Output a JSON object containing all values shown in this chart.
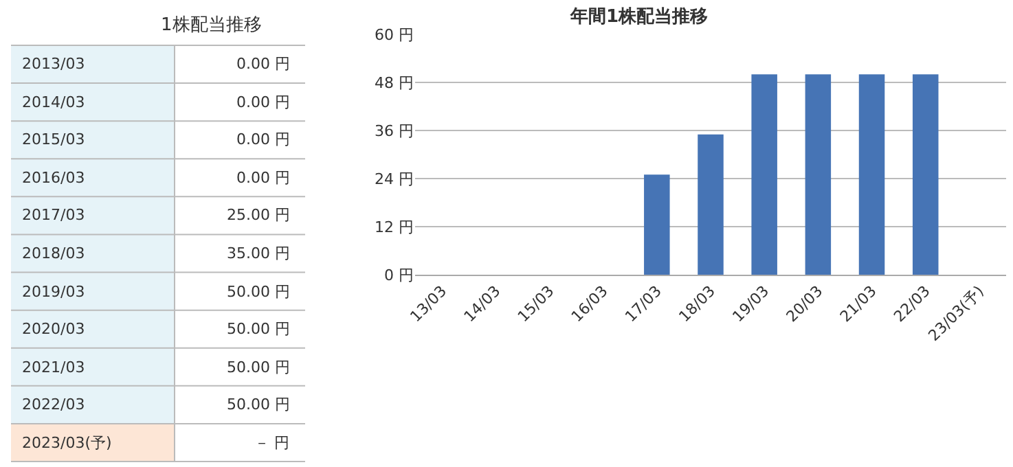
{
  "chart_data": [
    {
      "type": "other",
      "title": "1株配当推移",
      "categories": [
        "2013/03",
        "2014/03",
        "2015/03",
        "2016/03",
        "2017/03",
        "2018/03",
        "2019/03",
        "2020/03",
        "2021/03",
        "2022/03",
        "2023/03(予)"
      ],
      "value_labels": [
        "0.00 円",
        "0.00 円",
        "0.00 円",
        "0.00 円",
        "25.00 円",
        "35.00 円",
        "50.00 円",
        "50.00 円",
        "50.00 円",
        "50.00 円",
        "－ 円"
      ],
      "colors": [
        "#e6f3f8",
        "#e6f3f8",
        "#e6f3f8",
        "#e6f3f8",
        "#e6f3f8",
        "#e6f3f8",
        "#e6f3f8",
        "#e6f3f8",
        "#e6f3f8",
        "#e6f3f8",
        "#fde6d6"
      ]
    },
    {
      "type": "bar",
      "title": "年間1株配当推移",
      "categories": [
        "13/03",
        "14/03",
        "15/03",
        "16/03",
        "17/03",
        "18/03",
        "19/03",
        "20/03",
        "21/03",
        "22/03",
        "23/03(予)"
      ],
      "series": [
        {
          "color": "#4674b5",
          "values": [
            0,
            0,
            0,
            0,
            25,
            35,
            50,
            50,
            50,
            50,
            null
          ]
        }
      ],
      "ylim": [
        0,
        60
      ],
      "yticks": [
        {
          "value": 0,
          "label": "0 円"
        },
        {
          "value": 12,
          "label": "12 円"
        },
        {
          "value": 24,
          "label": "24 円"
        },
        {
          "value": 36,
          "label": "36 円"
        },
        {
          "value": 48,
          "label": "48 円"
        },
        {
          "value": 60,
          "label": "60 円"
        }
      ],
      "grid": "y"
    }
  ]
}
